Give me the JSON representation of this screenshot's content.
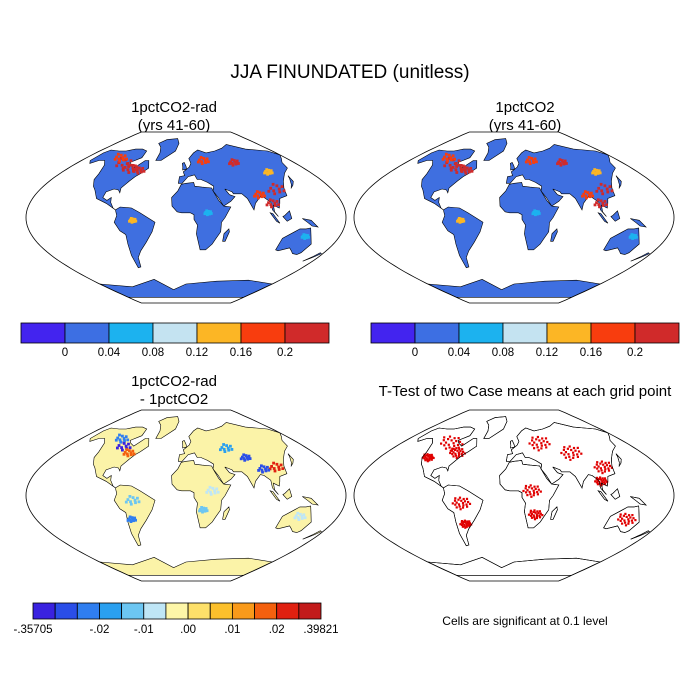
{
  "title": "JJA FINUNDATED (unitless)",
  "panels": {
    "top_left": {
      "title_line1": "1pctCO2-rad",
      "title_line2": "(yrs 41-60)"
    },
    "top_right": {
      "title_line1": "1pctCO2",
      "title_line2": "(yrs 41-60)"
    },
    "bottom_left": {
      "title_line1": "1pctCO2-rad",
      "title_line2": "- 1pctCO2"
    },
    "bottom_right": {
      "title": "T-Test of two Case means at each grid point",
      "footnote": "Cells are significant at 0.1 level"
    }
  },
  "colorbar_abs": {
    "colors": [
      "#4324ef",
      "#3d6fe3",
      "#1cb2ef",
      "#c4e3f1",
      "#fcb625",
      "#f83d0e",
      "#d02a2a"
    ],
    "labels": [
      "0",
      "0.04",
      "0.08",
      "0.12",
      "0.16",
      "0.2"
    ]
  },
  "colorbar_diff": {
    "colors": [
      "#3a22e0",
      "#2a4ee8",
      "#2f7ef0",
      "#2aa0f0",
      "#6cc6f2",
      "#bfe6f6",
      "#fdf6a8",
      "#fde06a",
      "#fcc02c",
      "#f99a1a",
      "#f4600e",
      "#e02010",
      "#c21a1a"
    ],
    "labels": [
      "-.35705",
      "-.02",
      "-.01",
      ".00",
      ".01",
      ".02",
      ".39821"
    ]
  },
  "colors": {
    "land_abs": "#3f6fe0",
    "land_diff": "#fbf3a8",
    "significant": "#e00000"
  },
  "hotspots": {
    "abs": [
      {
        "lon": -100,
        "lat": 57,
        "c": "#d02a2a",
        "s": 1.3
      },
      {
        "lon": -85,
        "lat": 52,
        "c": "#d02a2a",
        "s": 1.1
      },
      {
        "lon": -118,
        "lat": 63,
        "c": "#f83d0e",
        "s": 0.9
      },
      {
        "lon": -70,
        "lat": 50,
        "c": "#d02a2a",
        "s": 0.8
      },
      {
        "lon": 30,
        "lat": 60,
        "c": "#f83d0e",
        "s": 0.8
      },
      {
        "lon": 80,
        "lat": 58,
        "c": "#d02a2a",
        "s": 0.7
      },
      {
        "lon": 112,
        "lat": 30,
        "c": "#d02a2a",
        "s": 1.2
      },
      {
        "lon": 100,
        "lat": 15,
        "c": "#d02a2a",
        "s": 0.9
      },
      {
        "lon": 88,
        "lat": 24,
        "c": "#f83d0e",
        "s": 0.8
      },
      {
        "lon": 120,
        "lat": 48,
        "c": "#fcb625",
        "s": 0.6
      },
      {
        "lon": -60,
        "lat": -3,
        "c": "#fcb625",
        "s": 0.5
      },
      {
        "lon": 25,
        "lat": 5,
        "c": "#1cb2ef",
        "s": 0.5
      },
      {
        "lon": 140,
        "lat": -20,
        "c": "#1cb2ef",
        "s": 0.5
      }
    ],
    "diff": [
      {
        "lon": -95,
        "lat": 52,
        "c": "#3a22e0",
        "s": 1.0
      },
      {
        "lon": -80,
        "lat": 45,
        "c": "#f4600e",
        "s": 0.8
      },
      {
        "lon": -110,
        "lat": 60,
        "c": "#2f7ef0",
        "s": 0.9
      },
      {
        "lon": 60,
        "lat": 50,
        "c": "#2aa0f0",
        "s": 0.9
      },
      {
        "lon": 80,
        "lat": 40,
        "c": "#2a4ee8",
        "s": 0.7
      },
      {
        "lon": 112,
        "lat": 30,
        "c": "#e02010",
        "s": 1.0
      },
      {
        "lon": 95,
        "lat": 28,
        "c": "#2a4ee8",
        "s": 0.8
      },
      {
        "lon": -60,
        "lat": -5,
        "c": "#6cc6f2",
        "s": 1.0
      },
      {
        "lon": -65,
        "lat": -25,
        "c": "#2f7ef0",
        "s": 0.6
      },
      {
        "lon": 30,
        "lat": 5,
        "c": "#bfe6f6",
        "s": 0.9
      },
      {
        "lon": 20,
        "lat": -15,
        "c": "#6cc6f2",
        "s": 0.6
      },
      {
        "lon": 135,
        "lat": -22,
        "c": "#bfe6f6",
        "s": 0.8
      }
    ],
    "sig": [
      {
        "lon": -100,
        "lat": 55,
        "s": 1.6
      },
      {
        "lon": -80,
        "lat": 45,
        "s": 1.1
      },
      {
        "lon": -115,
        "lat": 40,
        "s": 0.8
      },
      {
        "lon": 40,
        "lat": 55,
        "s": 1.5
      },
      {
        "lon": 80,
        "lat": 45,
        "s": 1.5
      },
      {
        "lon": 110,
        "lat": 30,
        "s": 1.3
      },
      {
        "lon": 100,
        "lat": 15,
        "s": 0.9
      },
      {
        "lon": -60,
        "lat": -8,
        "s": 1.3
      },
      {
        "lon": -60,
        "lat": -30,
        "s": 0.8
      },
      {
        "lon": 20,
        "lat": 5,
        "s": 1.3
      },
      {
        "lon": 25,
        "lat": -20,
        "s": 1.0
      },
      {
        "lon": 135,
        "lat": -25,
        "s": 1.3
      }
    ]
  }
}
